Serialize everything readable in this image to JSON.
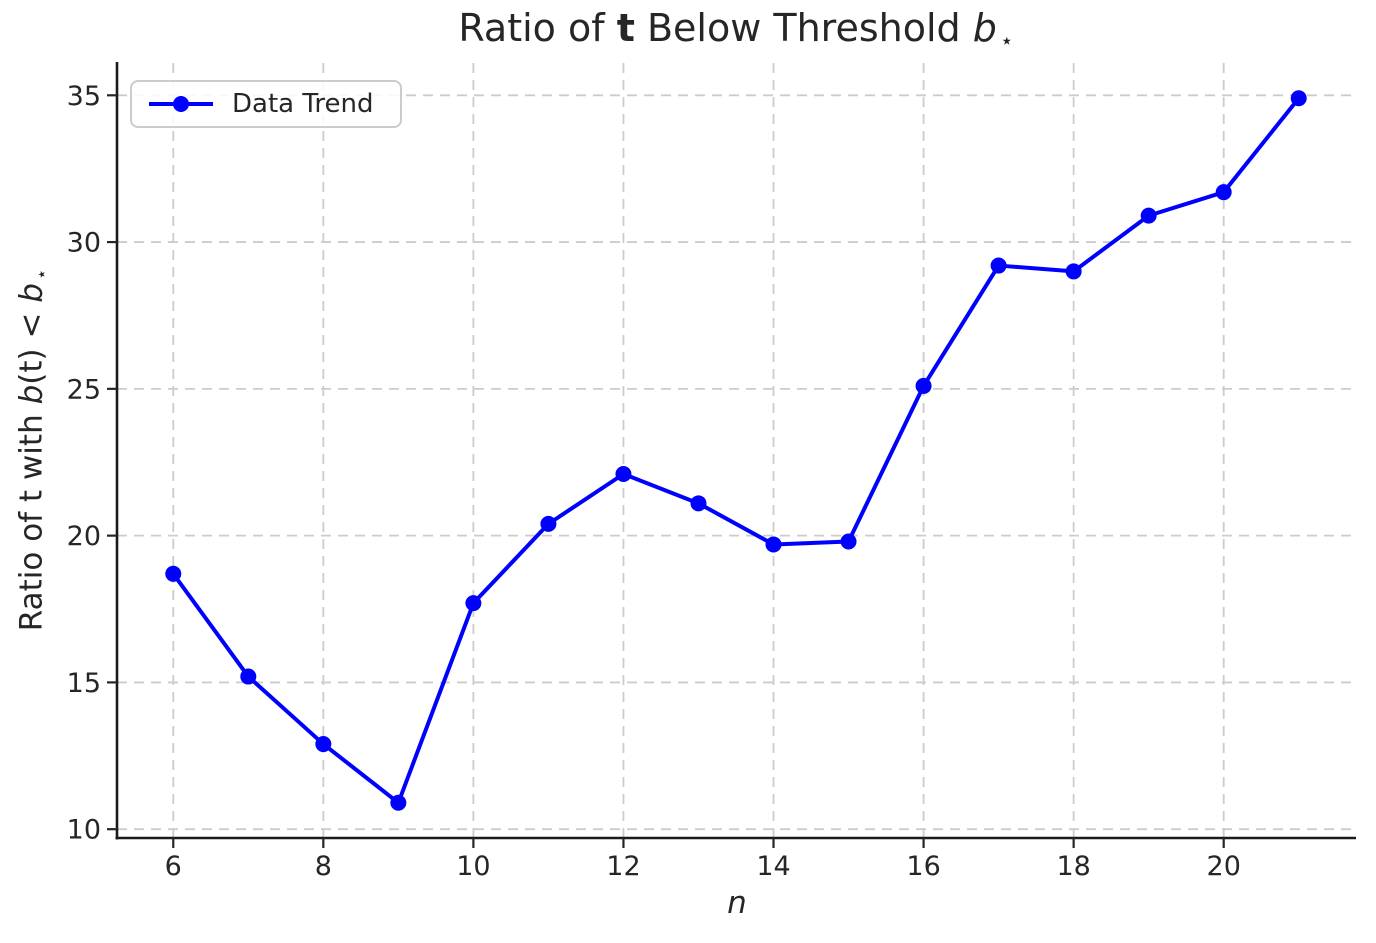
{
  "colors": {
    "background": "#ffffff",
    "text": "#262626",
    "spine": "#1a1a1a",
    "grid": "#cccccc",
    "tick": "#262626",
    "legend_border": "#cccccc",
    "line": "#0000ff"
  },
  "text": {
    "title_segments": [
      {
        "text": "Ratio of ",
        "style": "normal"
      },
      {
        "text": "t",
        "style": "bold"
      },
      {
        "text": " Below Threshold ",
        "style": "normal"
      },
      {
        "text": "b",
        "style": "italic"
      },
      {
        "text": "⋆",
        "style": "sub"
      }
    ],
    "ylabel_segments": [
      {
        "text": "Ratio of ",
        "style": "normal"
      },
      {
        "text": "t",
        "style": "bold"
      },
      {
        "text": " with ",
        "style": "normal"
      },
      {
        "text": "b",
        "style": "italic"
      },
      {
        "text": "(",
        "style": "normal"
      },
      {
        "text": "t",
        "style": "bold"
      },
      {
        "text": ") < ",
        "style": "normal"
      },
      {
        "text": "b",
        "style": "italic"
      },
      {
        "text": "⋆",
        "style": "sub"
      }
    ],
    "xlabel_segments": [
      {
        "text": "n",
        "style": "italic"
      }
    ]
  },
  "chart_data": {
    "type": "line",
    "title": "Ratio of t Below Threshold b⋆",
    "xlabel": "n",
    "ylabel": "Ratio of t with b(t) < b⋆",
    "x": [
      6,
      7,
      8,
      9,
      10,
      11,
      12,
      13,
      14,
      15,
      16,
      17,
      18,
      19,
      20,
      21
    ],
    "series": [
      {
        "name": "Data Trend",
        "values": [
          18.7,
          15.2,
          12.9,
          10.9,
          17.7,
          20.4,
          22.1,
          21.1,
          19.7,
          19.8,
          25.1,
          29.2,
          29.0,
          30.9,
          31.7,
          34.9
        ]
      }
    ],
    "xticks": [
      6,
      8,
      10,
      12,
      14,
      16,
      18,
      20
    ],
    "yticks": [
      10,
      15,
      20,
      25,
      30,
      35
    ],
    "xlim": [
      5.25,
      21.75
    ],
    "ylim": [
      9.7,
      36.1
    ],
    "grid": true,
    "grid_style": "dashed",
    "legend_position": "upper left",
    "marker": "circle",
    "marker_radius": 8,
    "line_width": 4
  }
}
